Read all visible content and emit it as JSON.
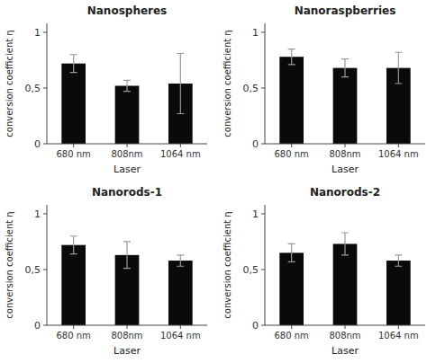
{
  "chart_data": [
    {
      "type": "bar",
      "title": "Nanospheres",
      "categories": [
        "680 nm",
        "808nm",
        "1064 nm"
      ],
      "values": [
        0.72,
        0.52,
        0.54
      ],
      "errors": [
        0.08,
        0.05,
        0.27
      ],
      "xlabel": "Laser",
      "ylabel": "conversion coefficient η",
      "color": "#0a0a0a",
      "ylim": [
        0,
        1.08
      ],
      "yticks": [
        0,
        {
          "value": 0.5,
          "label": "0,5"
        },
        1
      ]
    },
    {
      "type": "bar",
      "title": "Nanoraspberries",
      "categories": [
        "680 nm",
        "808nm",
        "1064 nm"
      ],
      "values": [
        0.78,
        0.68,
        0.68
      ],
      "errors": [
        0.07,
        0.08,
        0.14
      ],
      "xlabel": "Laser",
      "ylabel": "conversion coefficient η",
      "color": "#0a0a0a",
      "ylim": [
        0,
        1.08
      ],
      "yticks": [
        0,
        {
          "value": 0.5,
          "label": "0,5"
        },
        1
      ]
    },
    {
      "type": "bar",
      "title": "Nanorods-1",
      "categories": [
        "680 nm",
        "808nm",
        "1064 nm"
      ],
      "values": [
        0.72,
        0.63,
        0.58
      ],
      "errors": [
        0.08,
        0.12,
        0.05
      ],
      "xlabel": "Laser",
      "ylabel": "conversion coefficient η",
      "color": "#0a0a0a",
      "ylim": [
        0,
        1.08
      ],
      "yticks": [
        0,
        {
          "value": 0.5,
          "label": "0,5"
        },
        1
      ]
    },
    {
      "type": "bar",
      "title": "Nanorods-2",
      "categories": [
        "680 nm",
        "808nm",
        "1064 nm"
      ],
      "values": [
        0.65,
        0.73,
        0.58
      ],
      "errors": [
        0.08,
        0.1,
        0.05
      ],
      "xlabel": "Laser",
      "ylabel": "conversion coefficient η",
      "color": "#0a0a0a",
      "ylim": [
        0,
        1.08
      ],
      "yticks": [
        0,
        {
          "value": 0.5,
          "label": "0,5"
        },
        1
      ]
    }
  ]
}
